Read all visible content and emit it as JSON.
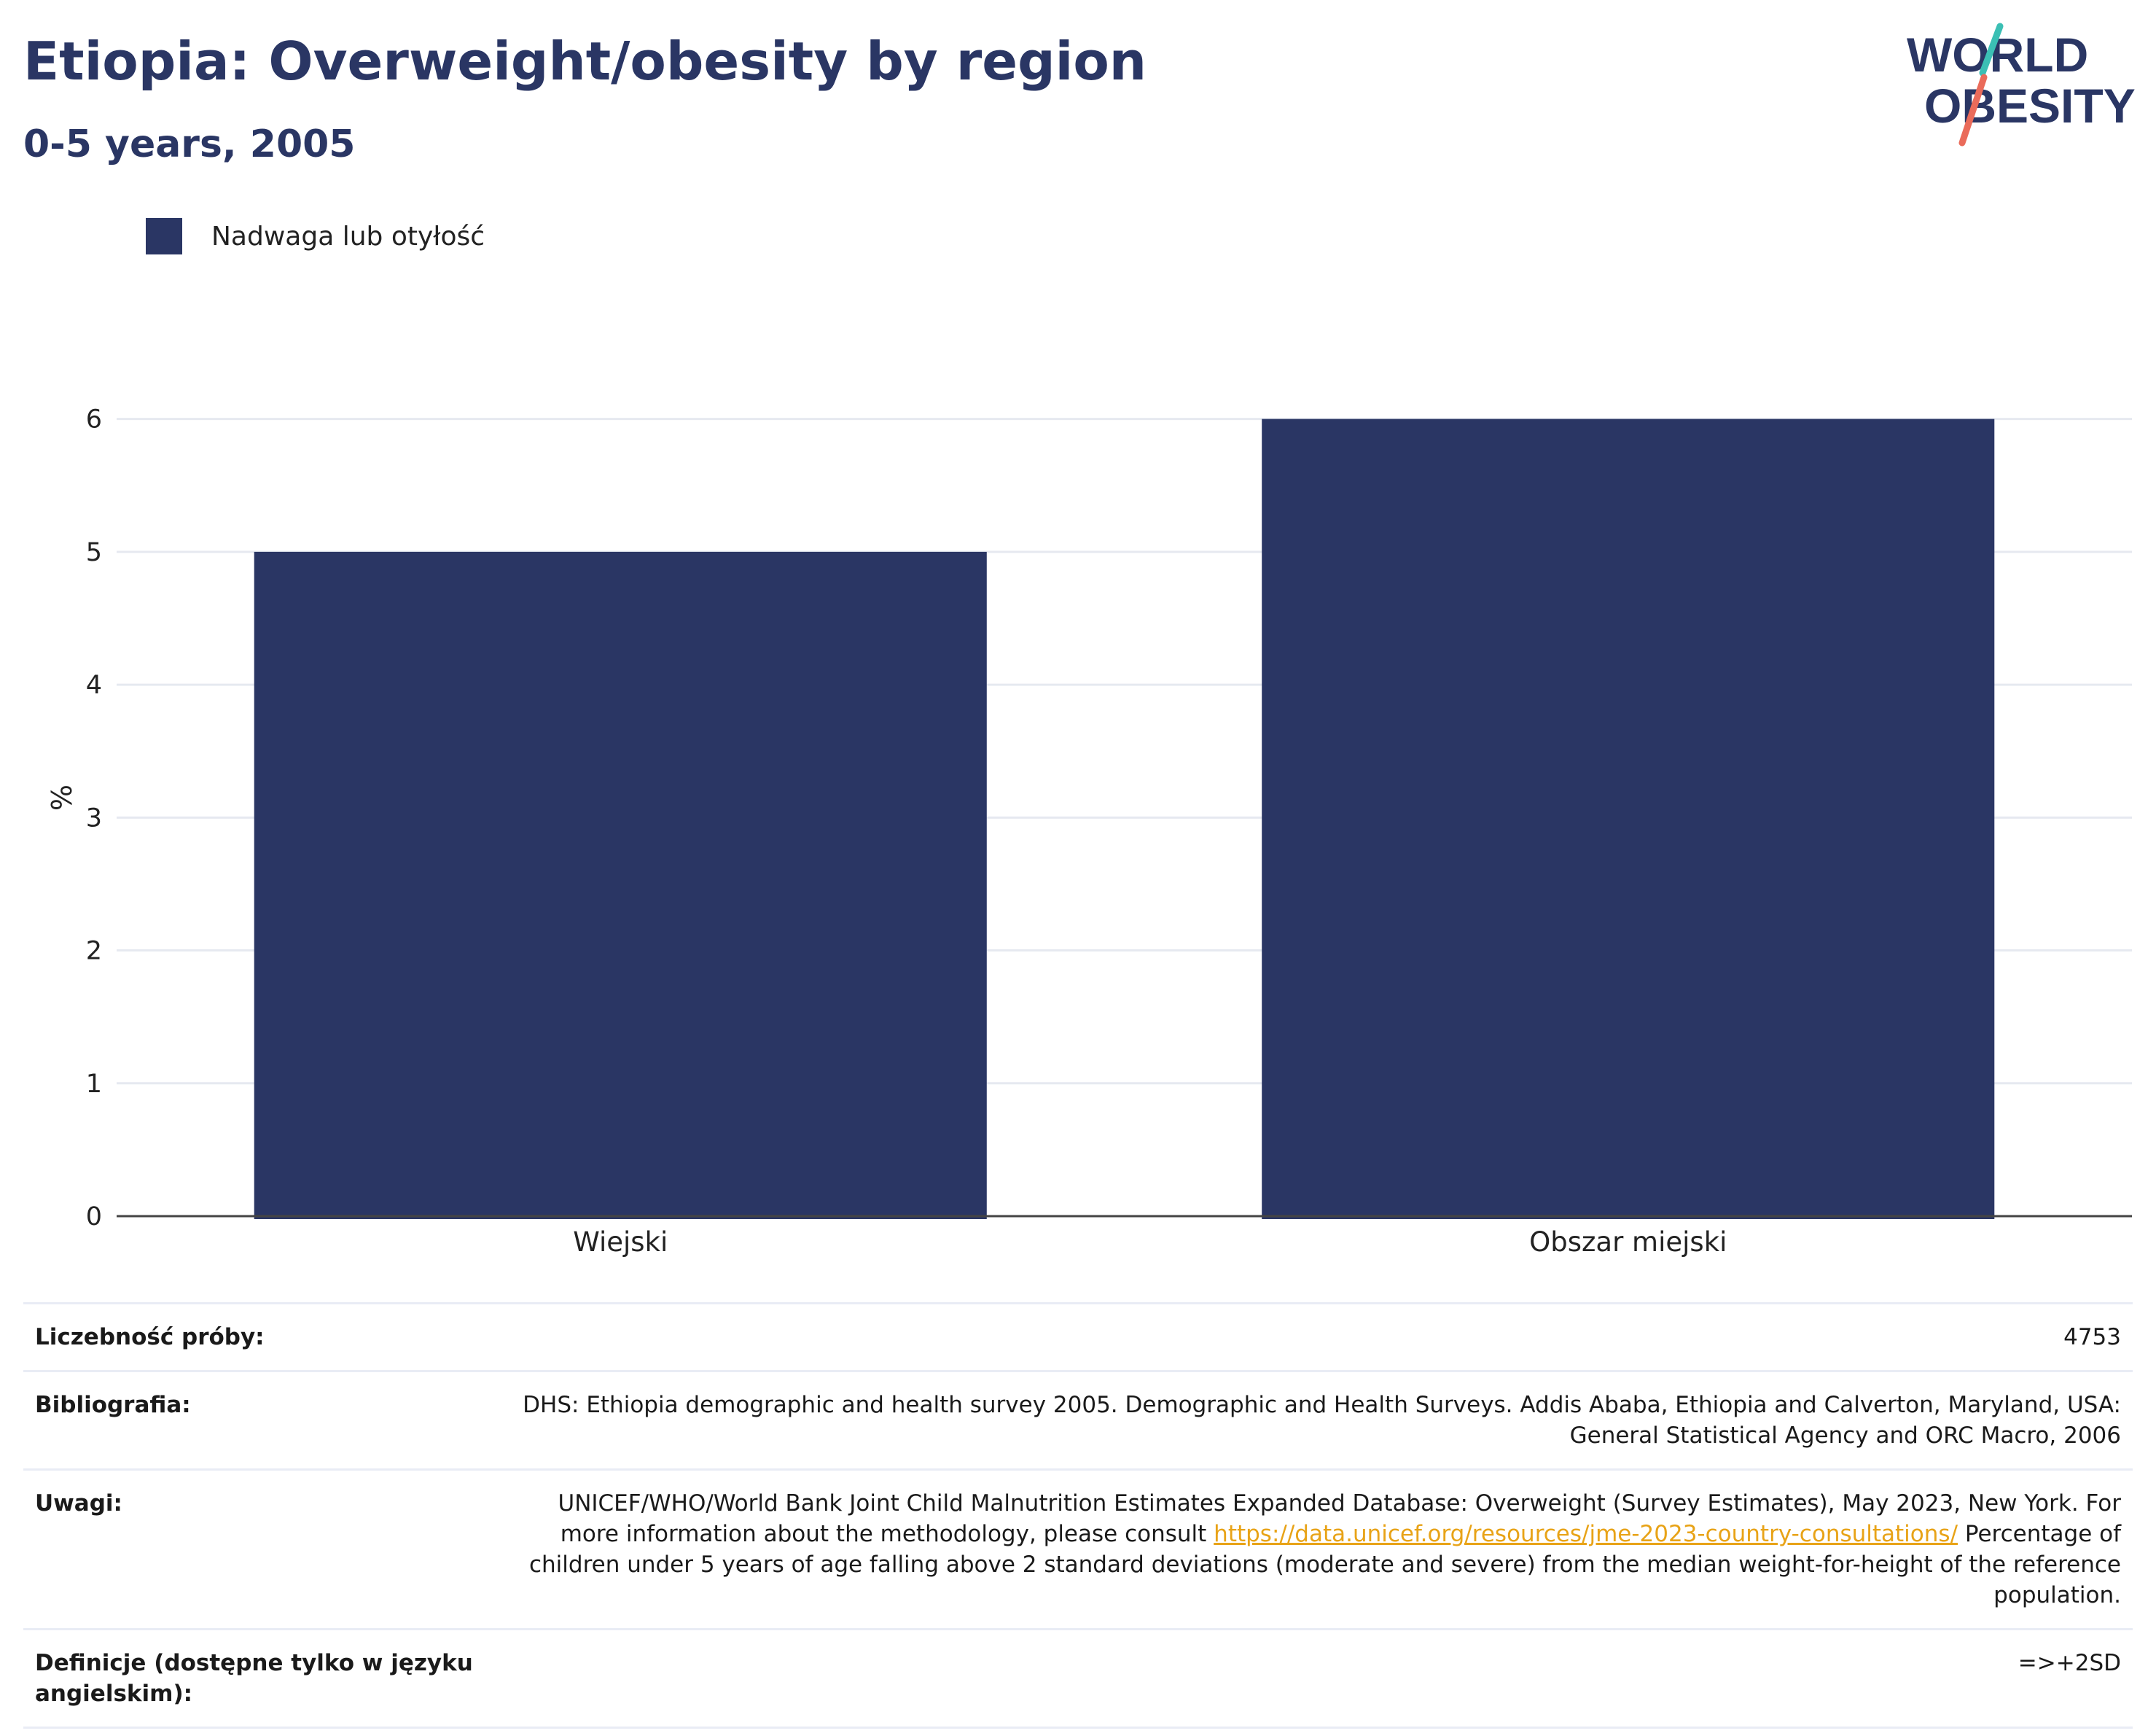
{
  "header": {
    "title": "Etiopia: Overweight/obesity by region",
    "subtitle": "0-5 years, 2005"
  },
  "logo": {
    "line1": "WORLD",
    "line2": "OBESITY",
    "accent_colors": [
      "#3bbfb4",
      "#ea6b5a"
    ],
    "text_color": "#2a3664"
  },
  "chart_data": {
    "type": "bar",
    "categories": [
      "Wiejski",
      "Obszar miejski"
    ],
    "series": [
      {
        "name": "Nadwaga lub otyłość",
        "values": [
          5.0,
          6.0
        ],
        "color": "#2a3664"
      }
    ],
    "ylabel": "%",
    "xlabel": "",
    "ylim": [
      0,
      6.3
    ],
    "yticks": [
      0,
      1,
      2,
      3,
      4,
      5,
      6
    ],
    "grid": true,
    "legend_position": "top-left"
  },
  "info": {
    "sample_size_label": "Liczebność próby:",
    "sample_size_value": "4753",
    "bibliography_label": "Bibliografia:",
    "bibliography_value": "DHS: Ethiopia demographic and health survey 2005. Demographic and Health Surveys. Addis Ababa, Ethiopia and Calverton, Maryland, USA: General Statistical Agency and ORC Macro, 2006",
    "notes_label": "Uwagi:",
    "notes_text_1": "UNICEF/WHO/World Bank Joint Child Malnutrition Estimates Expanded Database: Overweight (Survey Estimates), May 2023, New York. For more information about the methodology, please consult ",
    "notes_link": "https://data.unicef.org/resources/jme-2023-country-consultations/",
    "notes_text_2": " Percentage of children under 5 years of age falling above 2 standard deviations (moderate and severe) from the median weight-for-height of the reference population.",
    "definitions_label": "Definicje (dostępne tylko w języku angielskim):",
    "definitions_value": "=>+2SD"
  }
}
